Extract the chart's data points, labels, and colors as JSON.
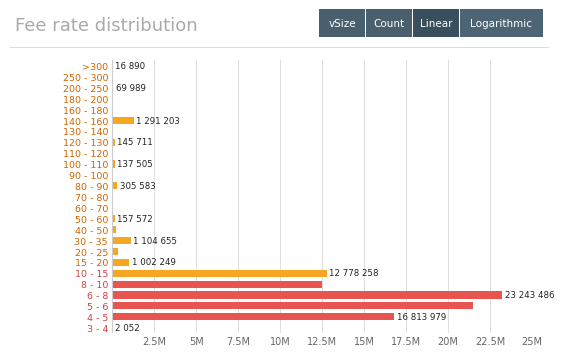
{
  "title": "Fee rate distribution",
  "categories": [
    ">300",
    "250 - 300",
    "200 - 250",
    "180 - 200",
    "160 - 180",
    "140 - 160",
    "130 - 140",
    "120 - 130",
    "110 - 120",
    "100 - 110",
    "90 - 100",
    "80 - 90",
    "70 - 80",
    "60 - 70",
    "50 - 60",
    "40 - 50",
    "30 - 35",
    "20 - 25",
    "15 - 20",
    "10 - 15",
    "8 - 10",
    "6 - 8",
    "5 - 6",
    "4 - 5",
    "3 - 4"
  ],
  "values": [
    16890,
    0,
    69989,
    0,
    5000,
    1291203,
    20000,
    145711,
    10000,
    137505,
    15000,
    305583,
    55000,
    8000,
    157572,
    250000,
    1104655,
    320000,
    1002249,
    12778258,
    12500000,
    23243486,
    21500000,
    16813979,
    2052
  ],
  "bar_colors": [
    "#f5a623",
    "#f5a623",
    "#f5a623",
    "#f5a623",
    "#7ec87e",
    "#f5a623",
    "#f5a623",
    "#f5a623",
    "#f5a623",
    "#f5a623",
    "#f5a623",
    "#f5a623",
    "#f5a623",
    "#f5a623",
    "#f5a623",
    "#f5a623",
    "#f5a623",
    "#f5a623",
    "#f5a623",
    "#f5a623",
    "#e85550",
    "#e85550",
    "#e85550",
    "#e85550",
    "#e85550"
  ],
  "value_labels": [
    "16 890",
    "",
    "69 989",
    "",
    "",
    "1 291 203",
    "",
    "145 711",
    "",
    "137 505",
    "",
    "305 583",
    "",
    "",
    "157 572",
    "",
    "1 104 655",
    "",
    "1 002 249",
    "12 778 258",
    "",
    "23 243 486",
    "",
    "16 813 979",
    "2 052"
  ],
  "label_colors": [
    "#cc6600",
    "#cc6600",
    "#cc6600",
    "#cc6600",
    "#cc6600",
    "#cc6600",
    "#cc6600",
    "#cc6600",
    "#cc6600",
    "#cc6600",
    "#cc6600",
    "#cc6600",
    "#cc6600",
    "#cc6600",
    "#cc6600",
    "#cc6600",
    "#cc6600",
    "#cc6600",
    "#cc6600",
    "#cc4444",
    "#cc4444",
    "#cc4444",
    "#cc4444",
    "#cc4444",
    "#cc4444"
  ],
  "background_color": "#ffffff",
  "title_color": "#aaaaaa",
  "xlim": [
    0,
    25000000
  ],
  "xticks": [
    0,
    2500000,
    5000000,
    7500000,
    10000000,
    12500000,
    15000000,
    17500000,
    20000000,
    22500000,
    25000000
  ],
  "xtick_labels": [
    "",
    "2.5M",
    "5M",
    "7.5M",
    "10M",
    "12.5M",
    "15M",
    "17.5M",
    "20M",
    "22.5M",
    "25M"
  ],
  "button_labels": [
    "vSize",
    "Count",
    "Linear",
    "Logarithmic"
  ],
  "button_colors": [
    "#4a5f6e",
    "#4a5f6e",
    "#3a4f5e",
    "#4d6475"
  ],
  "btn_active_color": "#3a4e5d"
}
